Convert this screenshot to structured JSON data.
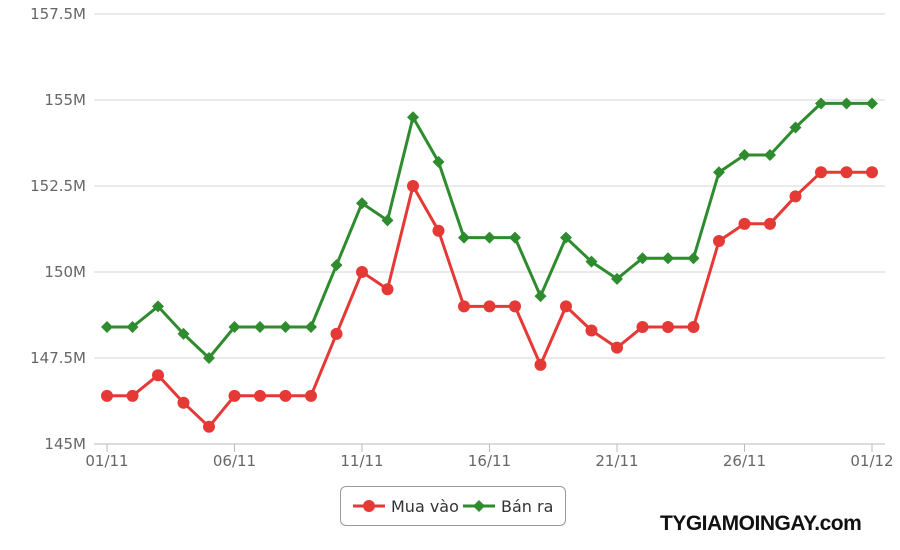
{
  "chart_data": {
    "type": "line",
    "title": "",
    "xlabel": "",
    "ylabel": "",
    "x": [
      "01/11",
      "02/11",
      "03/11",
      "04/11",
      "05/11",
      "06/11",
      "07/11",
      "08/11",
      "09/11",
      "10/11",
      "11/11",
      "12/11",
      "13/11",
      "14/11",
      "15/11",
      "16/11",
      "17/11",
      "18/11",
      "19/11",
      "20/11",
      "21/11",
      "22/11",
      "23/11",
      "24/11",
      "25/11",
      "26/11",
      "27/11",
      "28/11",
      "29/11",
      "30/11",
      "01/12"
    ],
    "x_tick_labels": [
      "01/11",
      "06/11",
      "11/11",
      "16/11",
      "21/11",
      "26/11",
      "01/12"
    ],
    "y_tick_labels": [
      "145M",
      "147.5M",
      "150M",
      "152.5M",
      "155M",
      "157.5M"
    ],
    "y_ticks": [
      145,
      147.5,
      150,
      152.5,
      155,
      157.5
    ],
    "ylim": [
      145,
      157.5
    ],
    "grid": true,
    "legend_position": "bottom-center",
    "series": [
      {
        "name": "Mua vào",
        "color": "#e53935",
        "marker": "circle",
        "values": [
          146.4,
          146.4,
          147.0,
          146.2,
          145.5,
          146.4,
          146.4,
          146.4,
          146.4,
          148.2,
          150.0,
          149.5,
          152.5,
          151.2,
          149.0,
          149.0,
          149.0,
          147.3,
          149.0,
          148.3,
          147.8,
          148.4,
          148.4,
          148.4,
          150.9,
          151.4,
          151.4,
          152.2,
          152.9,
          152.9,
          152.9
        ]
      },
      {
        "name": "Bán ra",
        "color": "#2e8b2e",
        "marker": "diamond",
        "values": [
          148.4,
          148.4,
          149.0,
          148.2,
          147.5,
          148.4,
          148.4,
          148.4,
          148.4,
          150.2,
          152.0,
          151.5,
          154.5,
          153.2,
          151.0,
          151.0,
          151.0,
          149.3,
          151.0,
          150.3,
          149.8,
          150.4,
          150.4,
          150.4,
          152.9,
          153.4,
          153.4,
          154.2,
          154.9,
          154.9,
          154.9
        ]
      }
    ]
  },
  "watermark": "TYGIAMOINGAY.com"
}
